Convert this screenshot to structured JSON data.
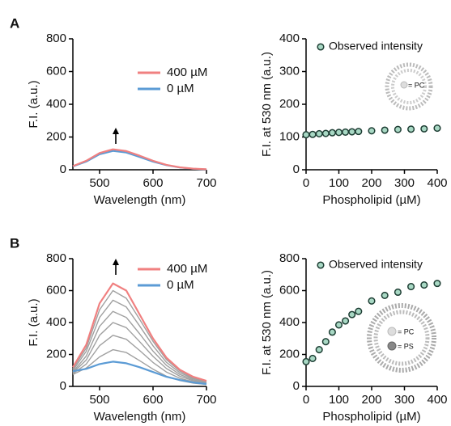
{
  "chart_data": [
    {
      "type": "line",
      "panel": "A",
      "xlabel": "Wavelength (nm)",
      "ylabel": "F.I. (a.u.)",
      "x": [
        450,
        475,
        500,
        525,
        550,
        575,
        600,
        625,
        650,
        675,
        700
      ],
      "series": [
        {
          "name": "400 µM",
          "color": "#f08080",
          "values": [
            22,
            55,
            102,
            125,
            114,
            86,
            55,
            30,
            15,
            7,
            3
          ]
        },
        {
          "name": "0 µM",
          "color": "#5b9bd5",
          "values": [
            20,
            50,
            95,
            115,
            105,
            78,
            50,
            28,
            14,
            6,
            2
          ]
        }
      ],
      "xlim": [
        450,
        700
      ],
      "xticks": [
        500,
        600,
        700
      ],
      "ylim": [
        0,
        800
      ],
      "yticks": [
        0,
        200,
        400,
        600,
        800
      ]
    },
    {
      "type": "scatter",
      "xlabel": "Phospholipid (µM)",
      "ylabel": "F.I. at 530 nm (a.u.)",
      "series": [
        {
          "name": "Observed intensity",
          "color": "#a8d8c4",
          "x": [
            0,
            20,
            40,
            60,
            80,
            100,
            120,
            140,
            160,
            200,
            240,
            280,
            320,
            360,
            400
          ],
          "values": [
            107,
            108,
            110,
            111,
            113,
            114,
            115,
            116,
            117,
            119,
            121,
            123,
            124,
            125,
            127
          ]
        }
      ],
      "inset_labels": [
        "= PC"
      ],
      "xlim": [
        0,
        400
      ],
      "xticks": [
        0,
        100,
        200,
        300,
        400
      ],
      "ylim": [
        0,
        400
      ],
      "yticks": [
        0,
        100,
        200,
        300,
        400
      ]
    },
    {
      "type": "line",
      "panel": "B",
      "xlabel": "Wavelength (nm)",
      "ylabel": "F.I. (a.u.)",
      "x": [
        450,
        475,
        500,
        525,
        550,
        575,
        600,
        625,
        650,
        675,
        700
      ],
      "series": [
        {
          "name": "400 µM",
          "color": "#f08080",
          "values": [
            120,
            260,
            520,
            645,
            600,
            450,
            300,
            180,
            105,
            60,
            35
          ]
        },
        {
          "name": "0 µM",
          "color": "#5b9bd5",
          "values": [
            95,
            110,
            140,
            155,
            145,
            120,
            90,
            60,
            40,
            25,
            15
          ]
        },
        {
          "name": null,
          "color": "#a0a0a0",
          "values": [
            75,
            115,
            185,
            230,
            212,
            161,
            108,
            64,
            37,
            21,
            12
          ]
        },
        {
          "name": null,
          "color": "#a0a0a0",
          "values": [
            80,
            140,
            255,
            320,
            295,
            225,
            150,
            90,
            51,
            29,
            16
          ]
        },
        {
          "name": null,
          "color": "#a0a0a0",
          "values": [
            85,
            165,
            320,
            400,
            368,
            280,
            188,
            112,
            64,
            36,
            20
          ]
        },
        {
          "name": null,
          "color": "#a0a0a0",
          "values": [
            90,
            190,
            376,
            470,
            432,
            329,
            221,
            132,
            75,
            42,
            24
          ]
        },
        {
          "name": null,
          "color": "#a0a0a0",
          "values": [
            100,
            220,
            432,
            540,
            497,
            378,
            254,
            151,
            86,
            49,
            27
          ]
        },
        {
          "name": null,
          "color": "#a0a0a0",
          "values": [
            110,
            240,
            480,
            600,
            552,
            420,
            282,
            168,
            96,
            54,
            30
          ]
        }
      ],
      "xlim": [
        450,
        700
      ],
      "xticks": [
        500,
        600,
        700
      ],
      "ylim": [
        0,
        800
      ],
      "yticks": [
        0,
        200,
        400,
        600,
        800
      ]
    },
    {
      "type": "scatter",
      "xlabel": "Phospholipid (µM)",
      "ylabel": "F.I. at 530 nm (a.u.)",
      "series": [
        {
          "name": "Observed intensity",
          "color": "#a8d8c4",
          "x": [
            0,
            20,
            40,
            60,
            80,
            100,
            120,
            140,
            160,
            200,
            240,
            280,
            320,
            360,
            400
          ],
          "values": [
            155,
            175,
            230,
            280,
            340,
            385,
            410,
            450,
            470,
            535,
            570,
            590,
            625,
            635,
            645
          ]
        }
      ],
      "inset_labels": [
        "= PC",
        "= PS"
      ],
      "xlim": [
        0,
        400
      ],
      "xticks": [
        0,
        100,
        200,
        300,
        400
      ],
      "ylim": [
        0,
        800
      ],
      "yticks": [
        0,
        200,
        400,
        600,
        800
      ]
    }
  ]
}
